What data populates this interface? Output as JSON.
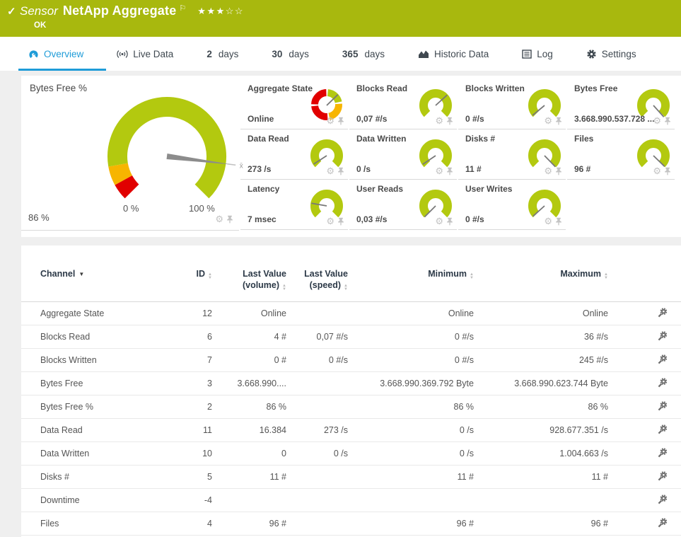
{
  "colors": {
    "brand_green": "#a8b80e",
    "gauge_green": "#b3c90f",
    "warn_orange": "#f7b500",
    "error_red": "#e10000",
    "accent_blue": "#1f9cd8"
  },
  "icons": {
    "check": "✓",
    "flag": "⚐",
    "star_filled": "★",
    "star_empty": "☆",
    "gear_glyph": "⚙"
  },
  "topbar": {
    "type_label": "Sensor",
    "title": "NetApp Aggregate",
    "status": "OK",
    "stars_filled": 3,
    "stars_total": 5
  },
  "tabs": [
    {
      "id": "overview",
      "icon": "gauge-icon",
      "label": "Overview",
      "active": true
    },
    {
      "id": "live-data",
      "icon": "live-icon",
      "label": "Live Data"
    },
    {
      "id": "2-days",
      "num": "2",
      "label": "days"
    },
    {
      "id": "30-days",
      "num": "30",
      "label": "days"
    },
    {
      "id": "365-days",
      "num": "365",
      "label": "days"
    },
    {
      "id": "historic-data",
      "icon": "chart-icon",
      "label": "Historic Data"
    },
    {
      "id": "log",
      "icon": "log-icon",
      "label": "Log"
    },
    {
      "id": "settings",
      "icon": "gear-icon",
      "label": "Settings"
    }
  ],
  "overview": {
    "big_gauge": {
      "title": "Bytes Free %",
      "value": "86 %",
      "min_label": "0 %",
      "max_label": "100 %",
      "needle_deg": 7.2,
      "avg_marker": "x̄",
      "segments": [
        {
          "from_pct": 0,
          "to_pct": 6,
          "color_key": "error_red"
        },
        {
          "from_pct": 6,
          "to_pct": 13,
          "color_key": "warn_orange"
        },
        {
          "from_pct": 13,
          "to_pct": 100,
          "color_key": "gauge_green"
        }
      ]
    },
    "mini_gauges": [
      {
        "title": "Aggregate State",
        "value": "Online",
        "type": "donut",
        "needle_deg": -44,
        "segments_deg": [
          [
            -85,
            -12,
            "gauge_green"
          ],
          [
            -4,
            78,
            "warn_orange"
          ],
          [
            86,
            174,
            "error_red"
          ],
          [
            182,
            268,
            "error_red"
          ]
        ]
      },
      {
        "title": "Blocks Read",
        "value": "0,07 #/s",
        "needle_deg": -42
      },
      {
        "title": "Blocks Written",
        "value": "0 #/s",
        "needle_deg": 140
      },
      {
        "title": "Bytes Free",
        "value": "3.668.990.537.728 ...",
        "needle_deg": 48
      },
      {
        "title": "Data Read",
        "value": "273 /s",
        "needle_deg": 147
      },
      {
        "title": "Data Written",
        "value": "0 /s",
        "needle_deg": 146
      },
      {
        "title": "Disks #",
        "value": "11 #",
        "needle_deg": 46
      },
      {
        "title": "Files",
        "value": "96 #",
        "needle_deg": 44
      },
      {
        "title": "Latency",
        "value": "7 msec",
        "needle_deg": 190
      },
      {
        "title": "User Reads",
        "value": "0,03 #/s",
        "needle_deg": 135
      },
      {
        "title": "User Writes",
        "value": "0 #/s",
        "needle_deg": 138
      }
    ]
  },
  "table": {
    "columns": [
      {
        "id": "channel",
        "label": "Channel",
        "sort": "active"
      },
      {
        "id": "id",
        "label": "ID",
        "sort": "sortable"
      },
      {
        "id": "last-value-volume",
        "label": "Last Value",
        "sub": "(volume)",
        "sort": "sortable"
      },
      {
        "id": "last-value-speed",
        "label": "Last Value",
        "sub": "(speed)",
        "sort": "sortable"
      },
      {
        "id": "minimum",
        "label": "Minimum",
        "sort": "sortable"
      },
      {
        "id": "maximum",
        "label": "Maximum",
        "sort": "sortable"
      }
    ],
    "rows": [
      {
        "name": "Aggregate State",
        "id": "12",
        "last_volume": "Online",
        "last_speed": "",
        "min": "Online",
        "max": "Online"
      },
      {
        "name": "Blocks Read",
        "id": "6",
        "last_volume": "4 #",
        "last_speed": "0,07 #/s",
        "min": "0 #/s",
        "max": "36 #/s"
      },
      {
        "name": "Blocks Written",
        "id": "7",
        "last_volume": "0 #",
        "last_speed": "0 #/s",
        "min": "0 #/s",
        "max": "245 #/s"
      },
      {
        "name": "Bytes Free",
        "id": "3",
        "last_volume": "3.668.990....",
        "last_speed": "",
        "min": "3.668.990.369.792 Byte",
        "max": "3.668.990.623.744 Byte"
      },
      {
        "name": "Bytes Free %",
        "id": "2",
        "last_volume": "86 %",
        "last_speed": "",
        "min": "86 %",
        "max": "86 %"
      },
      {
        "name": "Data Read",
        "id": "11",
        "last_volume": "16.384",
        "last_speed": "273 /s",
        "min": "0 /s",
        "max": "928.677.351 /s"
      },
      {
        "name": "Data Written",
        "id": "10",
        "last_volume": "0",
        "last_speed": "0 /s",
        "min": "0 /s",
        "max": "1.004.663 /s"
      },
      {
        "name": "Disks #",
        "id": "5",
        "last_volume": "11 #",
        "last_speed": "",
        "min": "11 #",
        "max": "11 #"
      },
      {
        "name": "Downtime",
        "id": "-4",
        "last_volume": "",
        "last_speed": "",
        "min": "",
        "max": ""
      },
      {
        "name": "Files",
        "id": "4",
        "last_volume": "96 #",
        "last_speed": "",
        "min": "96 #",
        "max": "96 #"
      }
    ]
  }
}
